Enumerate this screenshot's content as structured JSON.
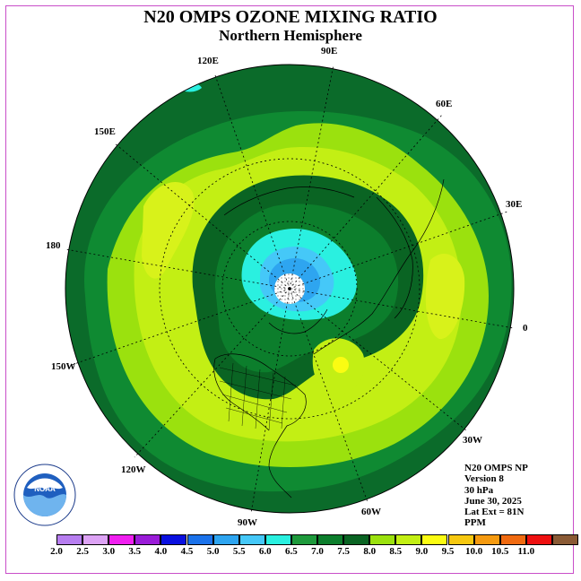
{
  "title": "N20 OMPS OZONE MIXING RATIO",
  "subtitle": "Northern Hemisphere",
  "longitude_labels": {
    "e120": "120E",
    "e90": "90E",
    "e60": "60E",
    "e150": "150E",
    "e30": "30E",
    "l180": "180",
    "zero": "0",
    "w150": "150W",
    "w30": "30W",
    "w120": "120W",
    "w60": "60W",
    "w90": "90W"
  },
  "info": {
    "instrument": "N20 OMPS NP",
    "version": "Version 8",
    "level": "30 hPa",
    "date": "June 30, 2025",
    "lat_ext": "Lat Ext = 81N",
    "units": "PPM"
  },
  "colorbar": {
    "ticks": [
      "2.0",
      "2.5",
      "3.0",
      "3.5",
      "4.0",
      "4.5",
      "5.0",
      "5.5",
      "6.0",
      "6.5",
      "7.0",
      "7.5",
      "8.0",
      "8.5",
      "9.0",
      "9.5",
      "10.0",
      "10.5",
      "11.0"
    ],
    "colors": [
      "#b77ef0",
      "#dda3f5",
      "#f01ff0",
      "#9a1cd8",
      "#0a10e0",
      "#1b72ea",
      "#2ea5f0",
      "#45c8f8",
      "#2af0e0",
      "#1e9a3c",
      "#0c7e2c",
      "#0a6423",
      "#9be10e",
      "#c3ef14",
      "#fbfc12",
      "#f6c810",
      "#f59a10",
      "#f06a10",
      "#ee1010",
      "#8a5a35"
    ]
  },
  "logo": {
    "text": "NOAA",
    "ring_text": "NATIONAL OCEANIC AND ATMOSPHERIC ADMINISTRATION · U.S. DEPARTMENT OF COMMERCE"
  }
}
